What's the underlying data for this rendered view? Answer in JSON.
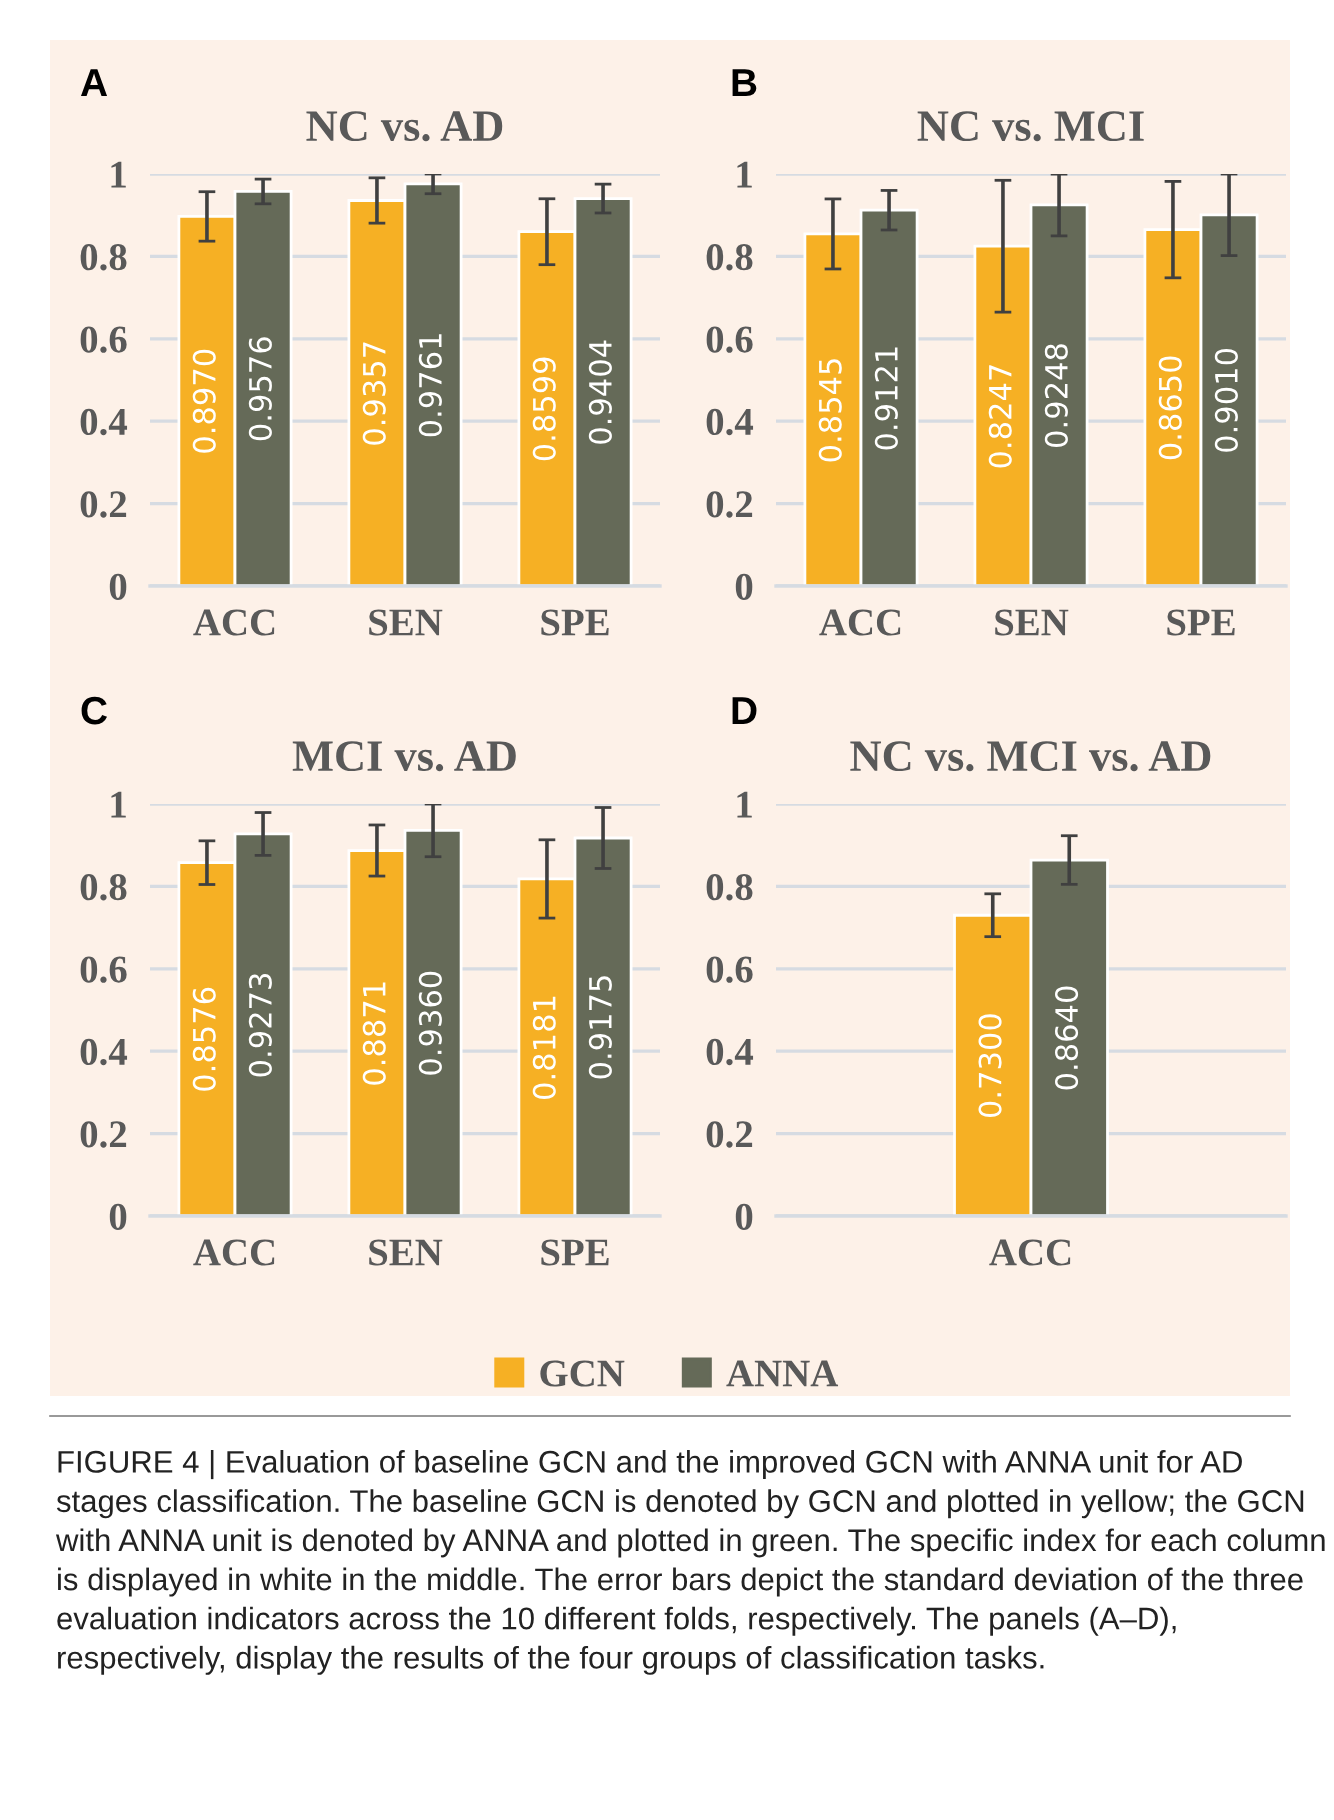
{
  "chart_data": [
    {
      "type": "bar",
      "title": "NC vs. AD",
      "annotations": [
        "A"
      ],
      "categories": [
        "ACC",
        "SEN",
        "SPE"
      ],
      "ylim": [
        0,
        1
      ],
      "yticks": [
        0,
        0.2,
        0.4,
        0.6,
        0.8,
        1
      ],
      "grid": "y",
      "series": [
        {
          "color": "#f6b024",
          "values": [
            0.897,
            0.9357,
            0.8599
          ],
          "value_labels": [
            "0.8970",
            "0.9357",
            "0.8599"
          ],
          "errors": [
            0.06,
            0.055,
            0.08
          ]
        },
        {
          "color": "#656a58",
          "values": [
            0.9576,
            0.9761,
            0.9404
          ],
          "value_labels": [
            "0.9576",
            "0.9761",
            "0.9404"
          ],
          "errors": [
            0.03,
            0.024,
            0.035
          ]
        }
      ]
    },
    {
      "type": "bar",
      "title": "NC vs. MCI",
      "annotations": [
        "B"
      ],
      "categories": [
        "ACC",
        "SEN",
        "SPE"
      ],
      "ylim": [
        0,
        1
      ],
      "yticks": [
        0,
        0.2,
        0.4,
        0.6,
        0.8,
        1
      ],
      "grid": "y",
      "series": [
        {
          "color": "#f6b024",
          "values": [
            0.8545,
            0.8247,
            0.865
          ],
          "value_labels": [
            "0.8545",
            "0.8247",
            "0.8650"
          ],
          "errors": [
            0.085,
            0.16,
            0.117
          ]
        },
        {
          "color": "#656a58",
          "values": [
            0.9121,
            0.9248,
            0.901
          ],
          "value_labels": [
            "0.9121",
            "0.9248",
            "0.9010"
          ],
          "errors": [
            0.048,
            0.075,
            0.099
          ]
        }
      ]
    },
    {
      "type": "bar",
      "title": "MCI vs. AD",
      "annotations": [
        "C"
      ],
      "categories": [
        "ACC",
        "SEN",
        "SPE"
      ],
      "ylim": [
        0,
        1
      ],
      "yticks": [
        0,
        0.2,
        0.4,
        0.6,
        0.8,
        1
      ],
      "grid": "y",
      "series": [
        {
          "color": "#f6b024",
          "values": [
            0.8576,
            0.8871,
            0.8181
          ],
          "value_labels": [
            "0.8576",
            "0.8871",
            "0.8181"
          ],
          "errors": [
            0.053,
            0.062,
            0.095
          ]
        },
        {
          "color": "#656a58",
          "values": [
            0.9273,
            0.936,
            0.9175
          ],
          "value_labels": [
            "0.9273",
            "0.9360",
            "0.9175"
          ],
          "errors": [
            0.052,
            0.064,
            0.074
          ]
        }
      ]
    },
    {
      "type": "bar",
      "title": "NC vs. MCI vs. AD",
      "annotations": [
        "D",
        "FIGURE 4 | Evaluation of baseline GCN and the improved GCN with ANNA unit for AD stages classification. The baseline GCN is denoted by GCN and plotted in yellow; the GCN with ANNA unit is denoted by ANNA and plotted in green. The specific index for each column is displayed in white in the middle. The error bars depict the standard deviation of the three evaluation indicators across the 10 different folds, respectively. The panels (A–D), respectively, display the results of the four groups of classification tasks."
      ],
      "categories": [
        "ACC"
      ],
      "ylim": [
        0,
        1
      ],
      "yticks": [
        0,
        0.2,
        0.4,
        0.6,
        0.8,
        1
      ],
      "grid": "y",
      "legend": "bottom",
      "series": [
        {
          "name": "GCN",
          "color": "#f6b024",
          "values": [
            0.73
          ],
          "value_labels": [
            "0.7300"
          ],
          "errors": [
            0.052
          ]
        },
        {
          "name": "ANNA",
          "color": "#656a58",
          "values": [
            0.864
          ],
          "value_labels": [
            "0.8640"
          ],
          "errors": [
            0.059
          ]
        }
      ]
    }
  ]
}
